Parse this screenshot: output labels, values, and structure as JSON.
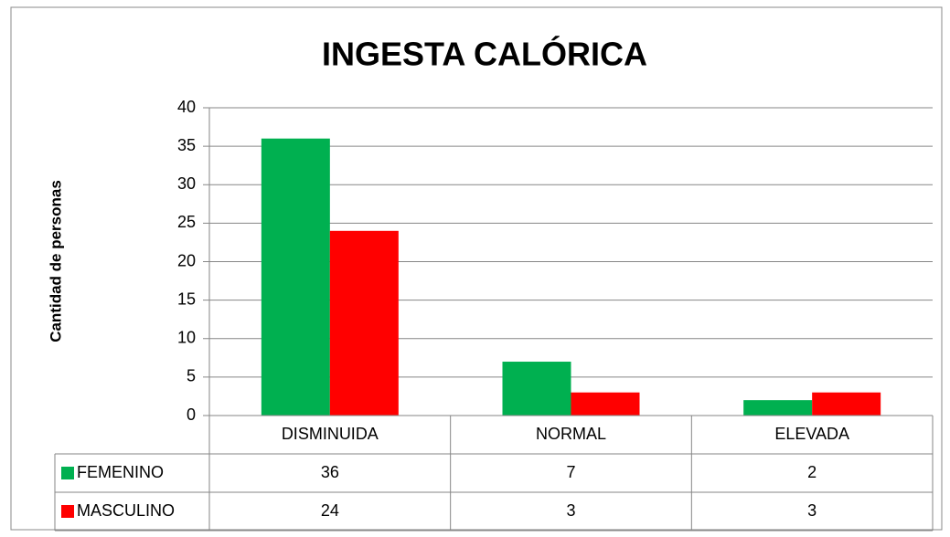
{
  "chart_data": {
    "type": "bar",
    "title": "INGESTA CALÓRICA",
    "y_label": "Cantidad de personas",
    "categories": [
      "DISMINUIDA",
      "NORMAL",
      "ELEVADA"
    ],
    "series": [
      {
        "name": "FEMENINO",
        "color": "#00b050",
        "values": [
          36,
          7,
          2
        ]
      },
      {
        "name": "MASCULINO",
        "color": "#ff0000",
        "values": [
          24,
          3,
          3
        ]
      }
    ],
    "ylim": [
      0,
      40
    ],
    "yticks": [
      0,
      5,
      10,
      15,
      20,
      25,
      30,
      35,
      40
    ],
    "grid": true,
    "data_table": true
  }
}
